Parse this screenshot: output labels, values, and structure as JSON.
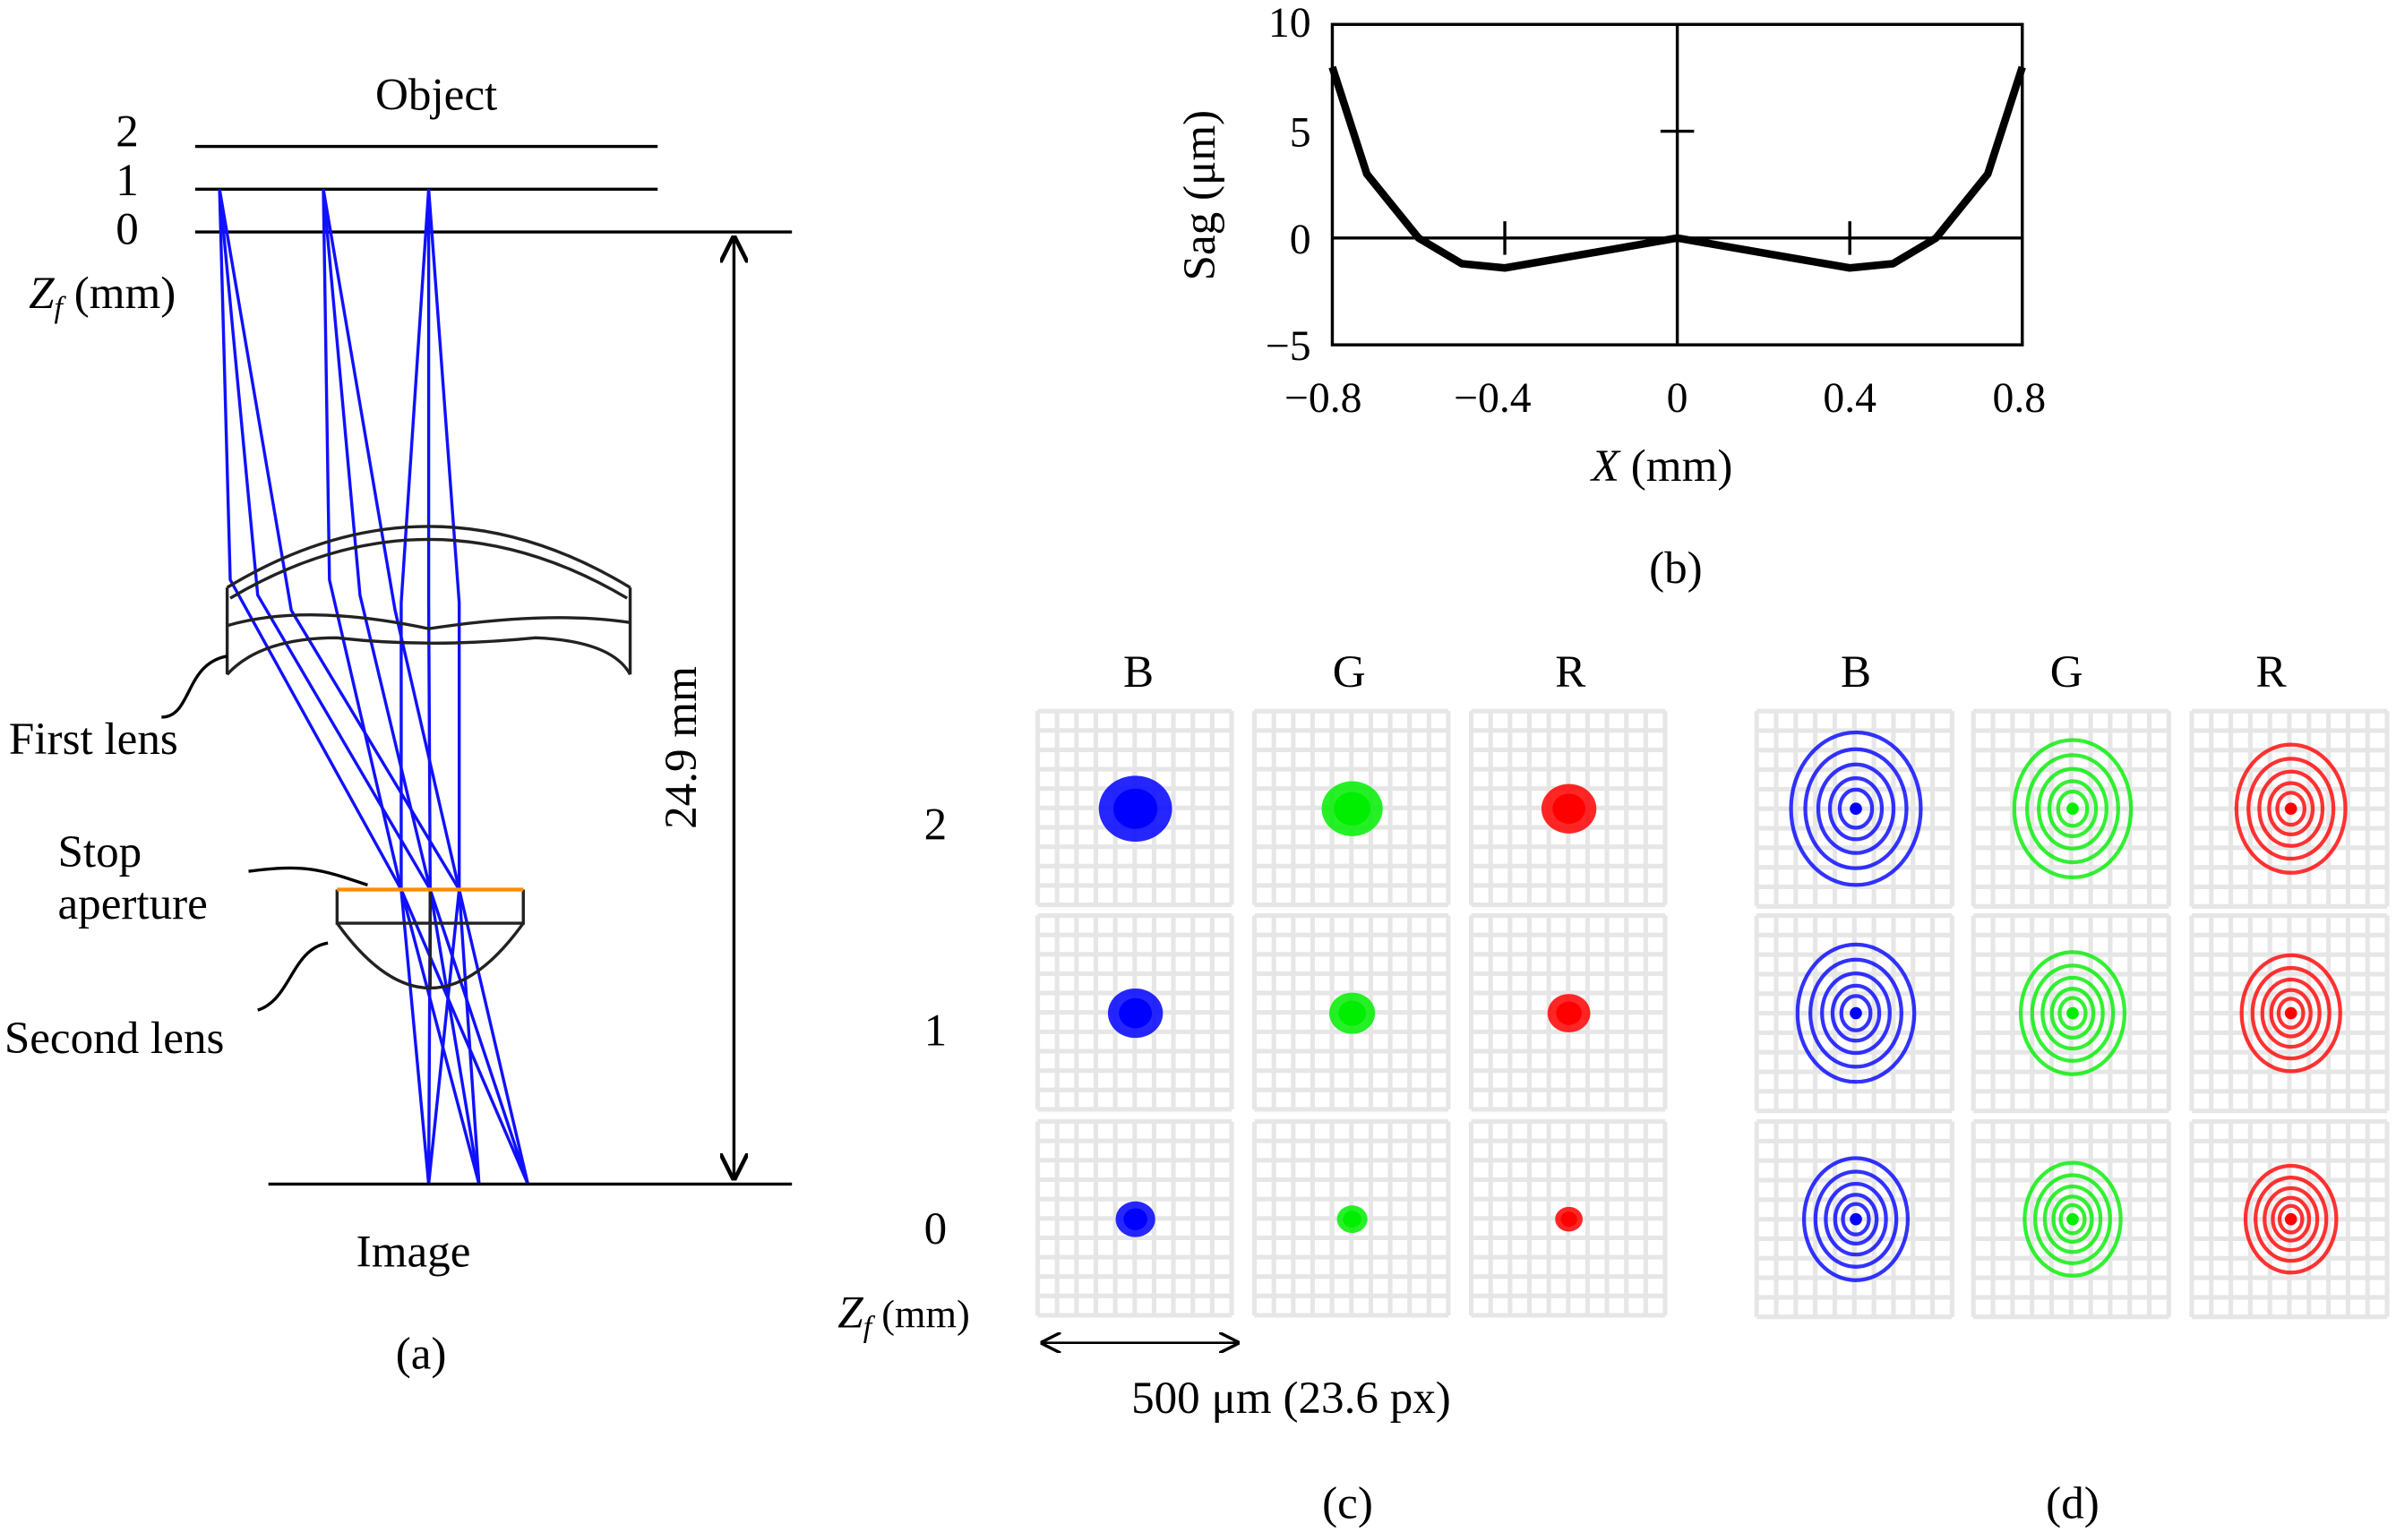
{
  "panel_a": {
    "object_label": "Object",
    "z_levels": [
      "2",
      "1",
      "0"
    ],
    "zf_label_var": "Z",
    "zf_label_sub": "f",
    "zf_label_unit": " (mm)",
    "first_lens_label": "First lens",
    "stop_label_line1": "Stop",
    "stop_label_line2": "aperture",
    "second_lens_label": "Second lens",
    "image_label": "Image",
    "distance_label": "24.9 mm",
    "caption": "(a)",
    "colors": {
      "rays": "#1010ff",
      "stop": "#ff8c00"
    }
  },
  "chart_data": {
    "type": "line",
    "title": "",
    "xlabel_var": "X",
    "xlabel_unit": " (mm)",
    "ylabel": "Sag (μm)",
    "xlim": [
      -0.8,
      0.8
    ],
    "ylim": [
      -5,
      10
    ],
    "x_ticks": [
      "−0.8",
      "−0.4",
      "0",
      "0.4",
      "0.8"
    ],
    "y_ticks": [
      "10",
      "5",
      "0",
      "−5"
    ],
    "x": [
      -0.8,
      -0.72,
      -0.6,
      -0.5,
      -0.4,
      -0.2,
      0,
      0.2,
      0.4,
      0.5,
      0.6,
      0.72,
      0.8
    ],
    "y": [
      8,
      3,
      0,
      -1.2,
      -1.4,
      -0.7,
      0,
      -0.7,
      -1.4,
      -1.2,
      0,
      3,
      8
    ],
    "grid": false,
    "caption": "(b)"
  },
  "panel_c": {
    "columns": [
      "B",
      "G",
      "R"
    ],
    "rows": [
      "2",
      "1",
      "0"
    ],
    "zf_label_var": "Z",
    "zf_label_sub": "f",
    "zf_label_unit": " (mm)",
    "scale_label": "500 μm (23.6 px)",
    "caption": "(c)"
  },
  "panel_d": {
    "columns": [
      "B",
      "G",
      "R"
    ],
    "caption": "(d)"
  },
  "colors": {
    "B": "#0000ff",
    "G": "#00ee00",
    "R": "#ff0000",
    "grid": "#e6e6e6"
  }
}
